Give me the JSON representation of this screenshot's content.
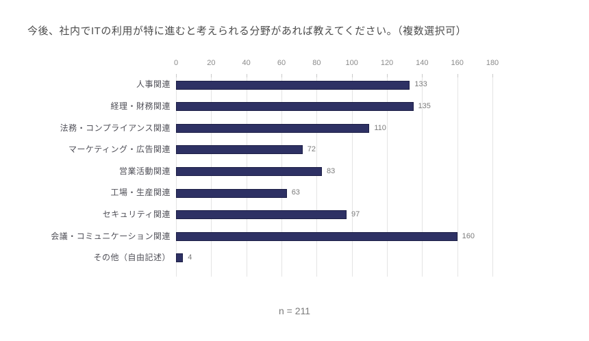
{
  "page": {
    "title": "今後、社内でITの利用が特に進むと考えられる分野があれば教えてください。（複数選択可）",
    "footnote": "n = 211"
  },
  "chart_data": {
    "type": "bar",
    "orientation": "horizontal",
    "title": "今後、社内でITの利用が特に進むと考えられる分野があれば教えてください。（複数選択可）",
    "categories": [
      "人事関連",
      "経理・財務関連",
      "法務・コンプライアンス関連",
      "マーケティング・広告関連",
      "営業活動関連",
      "工場・生産関連",
      "セキュリティ関連",
      "会議・コミュニケーション関連",
      "その他（自由記述）"
    ],
    "values": [
      133,
      135,
      110,
      72,
      83,
      63,
      97,
      160,
      4
    ],
    "xlabel": "",
    "ylabel": "",
    "xlim": [
      0,
      180
    ],
    "xticks": [
      0,
      20,
      40,
      60,
      80,
      100,
      120,
      140,
      160,
      180
    ],
    "axis_position": "top",
    "grid": "vertical",
    "annotation": "n = 211",
    "colors": {
      "bar_fill": "#2e3164",
      "bar_border": "#1c1e45",
      "gridline": "#e4e4e4",
      "tick_mark": "#c9c9c9",
      "tick_label": "#8a8a8a",
      "category_label": "#4f4f57",
      "value_label": "#7b7b7b",
      "title_text": "#4b4b4b",
      "footnote_text": "#7a7a7a"
    }
  }
}
